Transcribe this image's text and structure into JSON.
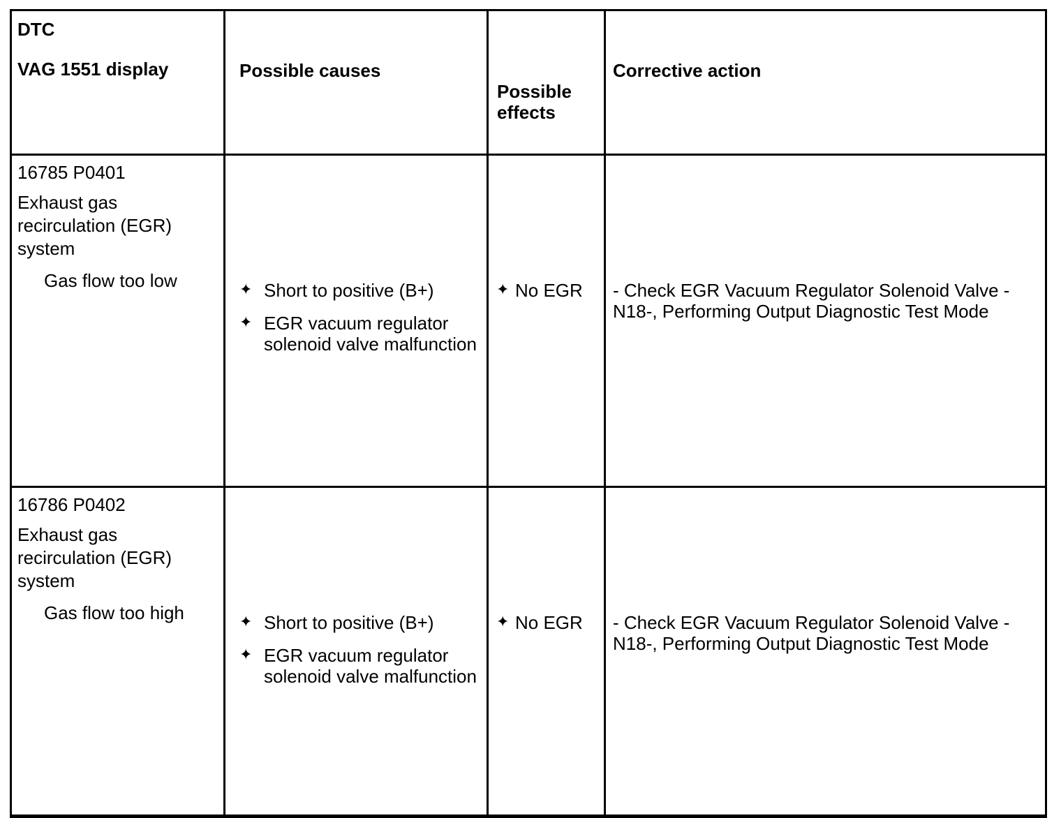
{
  "icons": {
    "bullet": "✦"
  },
  "table": {
    "header": {
      "dtc": "DTC",
      "vag_display": "VAG 1551 display",
      "possible_causes": "Possible causes",
      "possible_effects": "Possible\neffects",
      "corrective_action": "Corrective action"
    },
    "rows": [
      {
        "dtc_code": "16785 P0401",
        "description": "Exhaust gas\nrecirculation (EGR)\nsystem",
        "symptom": "Gas flow too low",
        "causes": [
          "Short to positive (B+)",
          "EGR vacuum regulator\nsolenoid valve malfunction"
        ],
        "effects": [
          "No EGR"
        ],
        "corrective_action": "- Check EGR Vacuum Regulator Solenoid Valve -\nN18-, Performing Output Diagnostic Test Mode"
      },
      {
        "dtc_code": "16786 P0402",
        "description": "Exhaust gas\nrecirculation (EGR)\nsystem",
        "symptom": "Gas flow too high",
        "causes": [
          "Short to positive (B+)",
          "EGR vacuum regulator\nsolenoid valve malfunction"
        ],
        "effects": [
          "No EGR"
        ],
        "corrective_action": "- Check EGR Vacuum Regulator Solenoid Valve -\nN18-, Performing Output Diagnostic Test Mode"
      }
    ]
  }
}
